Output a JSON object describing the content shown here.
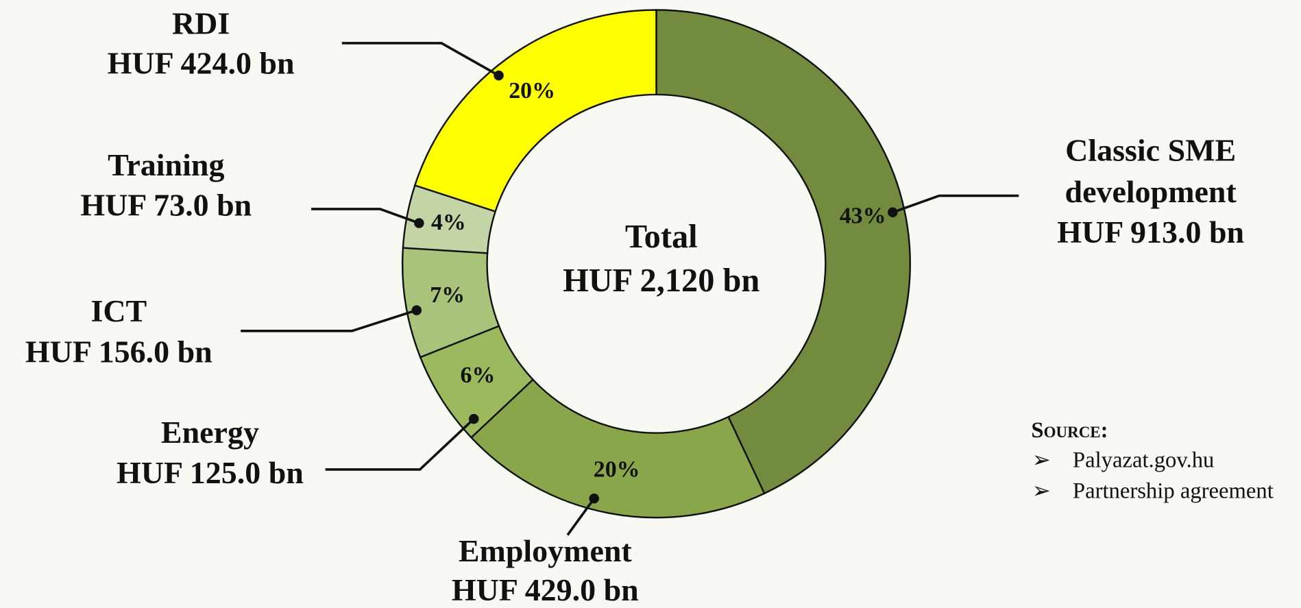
{
  "chart_data": {
    "type": "donut",
    "center_text": [
      "Total",
      "HUF 2,120 bn"
    ],
    "labels": [
      [
        "Classic SME",
        "development"
      ],
      [
        "Employment"
      ],
      [
        "Energy"
      ],
      [
        "ICT"
      ],
      [
        "Training"
      ],
      [
        "RDI"
      ]
    ],
    "amounts": [
      "HUF 913.0 bn",
      "HUF 429.0 bn",
      "HUF 125.0 bn",
      "HUF 156.0 bn",
      "HUF 73.0 bn",
      "HUF 424.0 bn"
    ],
    "values": [
      43,
      20,
      6,
      7,
      4,
      20
    ],
    "value_labels": [
      "43%",
      "20%",
      "6%",
      "7%",
      "4%",
      "20%"
    ],
    "colors": [
      "#738b3f",
      "#8aa64b",
      "#9cb95e",
      "#a9c47a",
      "#c3d5a4",
      "#ffff00"
    ]
  },
  "source": {
    "heading": "Source:",
    "items": [
      "Palyazat.gov.hu",
      "Partnership agreement"
    ]
  }
}
